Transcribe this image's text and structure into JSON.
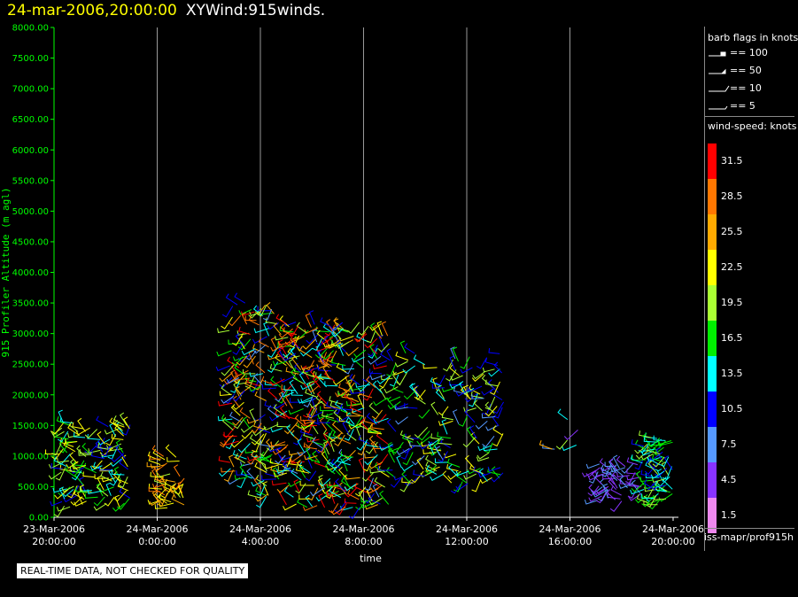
{
  "header": {
    "timestamp": "24-mar-2006,20:00:00",
    "product": "XYWind:915winds."
  },
  "chart_data": {
    "type": "wind-barb",
    "ylabel": "915 Profiler Altitude (m agl)",
    "xlabel": "time",
    "ylim": [
      0,
      8000
    ],
    "y_ticks": [
      "0.00",
      "500.00",
      "1000.00",
      "1500.00",
      "2000.00",
      "2500.00",
      "3000.00",
      "3500.00",
      "4000.00",
      "4500.00",
      "5000.00",
      "5500.00",
      "6000.00",
      "6500.00",
      "7000.00",
      "7500.00",
      "8000.00"
    ],
    "x_range_hours": [
      0,
      24
    ],
    "x_ticks": [
      {
        "hour": 0,
        "date": "23-Mar-2006",
        "time": "20:00:00"
      },
      {
        "hour": 4,
        "date": "24-Mar-2006",
        "time": "0:00:00"
      },
      {
        "hour": 8,
        "date": "24-Mar-2006",
        "time": "4:00:00"
      },
      {
        "hour": 12,
        "date": "24-Mar-2006",
        "time": "8:00:00"
      },
      {
        "hour": 16,
        "date": "24-Mar-2006",
        "time": "12:00:00"
      },
      {
        "hour": 20,
        "date": "24-Mar-2006",
        "time": "16:00:00"
      },
      {
        "hour": 24,
        "date": "24-Mar-2006",
        "time": "20:00:00"
      }
    ],
    "barb_clusters": [
      {
        "t_start": 0.2,
        "t_end": 3.0,
        "z_min": 150,
        "z_max": 1550,
        "speed_min": 10,
        "speed_max": 24,
        "density": 140
      },
      {
        "t_start": 4.1,
        "t_end": 5.1,
        "z_min": 150,
        "z_max": 1000,
        "speed_min": 19,
        "speed_max": 29,
        "density": 45
      },
      {
        "t_start": 6.8,
        "t_end": 8.8,
        "z_min": 300,
        "z_max": 3500,
        "speed_min": 8,
        "speed_max": 32,
        "density": 170
      },
      {
        "t_start": 8.8,
        "t_end": 13.0,
        "z_min": 150,
        "z_max": 3200,
        "speed_min": 8,
        "speed_max": 33,
        "density": 420
      },
      {
        "t_start": 13.0,
        "t_end": 17.5,
        "z_min": 500,
        "z_max": 2700,
        "speed_min": 8,
        "speed_max": 24,
        "density": 190
      },
      {
        "t_start": 19.3,
        "t_end": 20.5,
        "z_min": 1100,
        "z_max": 1700,
        "speed_min": 3,
        "speed_max": 30,
        "density": 6
      },
      {
        "t_start": 21.0,
        "t_end": 22.8,
        "z_min": 250,
        "z_max": 900,
        "speed_min": 3,
        "speed_max": 8,
        "density": 55
      },
      {
        "t_start": 22.8,
        "t_end": 24.0,
        "z_min": 200,
        "z_max": 1300,
        "speed_min": 10,
        "speed_max": 21,
        "density": 75
      }
    ],
    "grid": "vertical-only"
  },
  "legend": {
    "flags_title": "barb flags in knots",
    "flags": [
      "== 100",
      "== 50",
      "== 10",
      "== 5"
    ],
    "speed_title": "wind-speed: knots",
    "speed_bins": [
      {
        "label": "31.5",
        "color": "#ff0000"
      },
      {
        "label": "28.5",
        "color": "#ff7700"
      },
      {
        "label": "25.5",
        "color": "#ffaa00"
      },
      {
        "label": "22.5",
        "color": "#ffff00"
      },
      {
        "label": "19.5",
        "color": "#aaff33"
      },
      {
        "label": "16.5",
        "color": "#00ee00"
      },
      {
        "label": "13.5",
        "color": "#00ffff"
      },
      {
        "label": "10.5",
        "color": "#0000ff"
      },
      {
        "label": "7.5",
        "color": "#5599ff"
      },
      {
        "label": "4.5",
        "color": "#8833ff"
      },
      {
        "label": "1.5",
        "color": "#ee88ee"
      }
    ],
    "source": "iss-mapr/prof915h"
  },
  "notice": "REAL-TIME DATA, NOT CHECKED FOR QUALITY",
  "colors": {
    "axis": "#00ff00",
    "timestamp": "#ffff00",
    "grid": "#999999"
  }
}
